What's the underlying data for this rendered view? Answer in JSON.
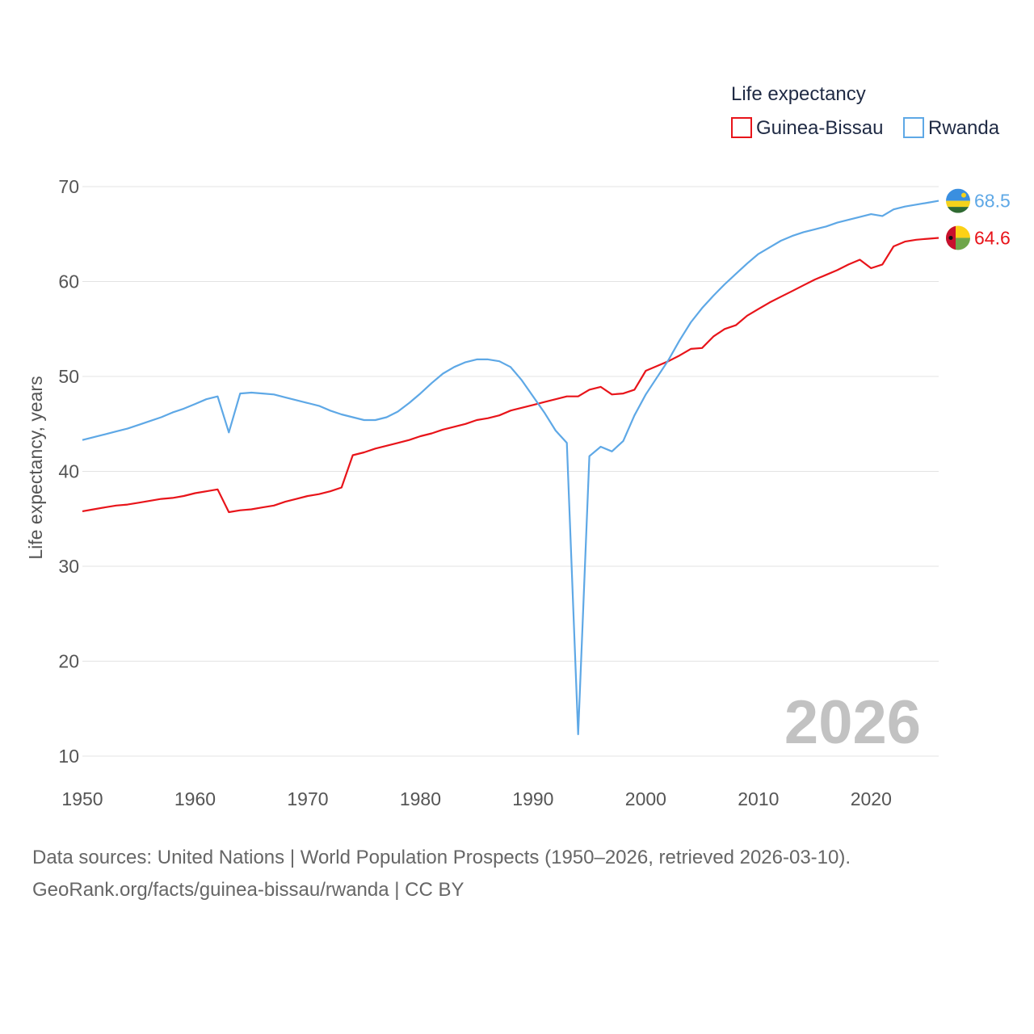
{
  "chart_data": {
    "type": "line",
    "title": "",
    "legend_title": "Life expectancy",
    "xlabel": "",
    "ylabel": "Life expectancy, years",
    "xlim": [
      1950,
      2026
    ],
    "ylim": [
      10,
      70
    ],
    "x_ticks": [
      1950,
      1960,
      1970,
      1980,
      1990,
      2000,
      2010,
      2020
    ],
    "y_ticks": [
      10,
      20,
      30,
      40,
      50,
      60,
      70
    ],
    "grid": true,
    "legend_position": "top-right",
    "watermark_year": "2026",
    "x": [
      1950,
      1951,
      1952,
      1953,
      1954,
      1955,
      1956,
      1957,
      1958,
      1959,
      1960,
      1961,
      1962,
      1963,
      1964,
      1965,
      1966,
      1967,
      1968,
      1969,
      1970,
      1971,
      1972,
      1973,
      1974,
      1975,
      1976,
      1977,
      1978,
      1979,
      1980,
      1981,
      1982,
      1983,
      1984,
      1985,
      1986,
      1987,
      1988,
      1989,
      1990,
      1991,
      1992,
      1993,
      1994,
      1995,
      1996,
      1997,
      1998,
      1999,
      2000,
      2001,
      2002,
      2003,
      2004,
      2005,
      2006,
      2007,
      2008,
      2009,
      2010,
      2011,
      2012,
      2013,
      2014,
      2015,
      2016,
      2017,
      2018,
      2019,
      2020,
      2021,
      2022,
      2023,
      2024,
      2025,
      2026
    ],
    "series": [
      {
        "name": "Guinea-Bissau",
        "color": "#e8141a",
        "end_label": "64.6",
        "flag": "guinea-bissau-flag",
        "values": [
          35.8,
          36.0,
          36.2,
          36.4,
          36.5,
          36.7,
          36.9,
          37.1,
          37.2,
          37.4,
          37.7,
          37.9,
          38.1,
          35.7,
          35.9,
          36.0,
          36.2,
          36.4,
          36.8,
          37.1,
          37.4,
          37.6,
          37.9,
          38.3,
          41.7,
          42.0,
          42.4,
          42.7,
          43.0,
          43.3,
          43.7,
          44.0,
          44.4,
          44.7,
          45.0,
          45.4,
          45.6,
          45.9,
          46.4,
          46.7,
          47.0,
          47.3,
          47.6,
          47.9,
          47.9,
          48.6,
          48.9,
          48.1,
          48.2,
          48.6,
          50.6,
          51.1,
          51.6,
          52.2,
          52.9,
          53.0,
          54.2,
          55.0,
          55.4,
          56.4,
          57.1,
          57.8,
          58.4,
          59.0,
          59.6,
          60.2,
          60.7,
          61.2,
          61.8,
          62.3,
          61.4,
          61.8,
          63.7,
          64.2,
          64.4,
          64.5,
          64.6
        ]
      },
      {
        "name": "Rwanda",
        "color": "#5ea8e6",
        "end_label": "68.5",
        "flag": "rwanda-flag",
        "values": [
          43.3,
          43.6,
          43.9,
          44.2,
          44.5,
          44.9,
          45.3,
          45.7,
          46.2,
          46.6,
          47.1,
          47.6,
          47.9,
          44.1,
          48.2,
          48.3,
          48.2,
          48.1,
          47.8,
          47.5,
          47.2,
          46.9,
          46.4,
          46.0,
          45.7,
          45.4,
          45.4,
          45.7,
          46.3,
          47.2,
          48.2,
          49.3,
          50.3,
          51.0,
          51.5,
          51.8,
          51.8,
          51.6,
          51.0,
          49.6,
          47.9,
          46.2,
          44.3,
          43.0,
          12.3,
          41.6,
          42.6,
          42.1,
          43.2,
          45.9,
          48.1,
          49.9,
          51.7,
          53.8,
          55.7,
          57.2,
          58.5,
          59.7,
          60.8,
          61.9,
          62.9,
          63.6,
          64.3,
          64.8,
          65.2,
          65.5,
          65.8,
          66.2,
          66.5,
          66.8,
          67.1,
          66.9,
          67.6,
          67.9,
          68.1,
          68.3,
          68.5
        ]
      }
    ]
  },
  "footer": {
    "source_line": "Data sources: United Nations | World Population Prospects (1950–2026, retrieved 2026-03-10).",
    "credit_line": "GeoRank.org/facts/guinea-bissau/rwanda | CC BY"
  }
}
